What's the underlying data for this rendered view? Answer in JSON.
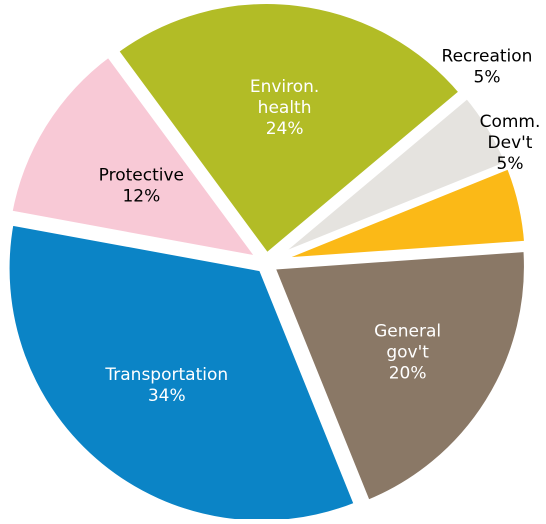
{
  "chart_data": {
    "type": "pie",
    "title": "",
    "start_angle": -40,
    "direction": "clockwise",
    "slices": [
      {
        "label_lines": [
          "Recreation",
          "5%"
        ],
        "value": 5,
        "color": "#e5e3df",
        "label_color": "#000000",
        "label_placement": "outside"
      },
      {
        "label_lines": [
          "Comm.",
          "Dev't",
          "5%"
        ],
        "value": 5,
        "color": "#fbb917",
        "label_color": "#000000",
        "label_placement": "outside"
      },
      {
        "label_lines": [
          "General",
          "gov't",
          "20%"
        ],
        "value": 20,
        "color": "#8a7866",
        "label_color": "#ffffff",
        "label_placement": "inside"
      },
      {
        "label_lines": [
          "Transportation",
          "34%"
        ],
        "value": 34,
        "color": "#0b84c6",
        "label_color": "#ffffff",
        "label_placement": "inside"
      },
      {
        "label_lines": [
          "Protective",
          "12%"
        ],
        "value": 12,
        "color": "#f8c9d6",
        "label_color": "#000000",
        "label_placement": "inside"
      },
      {
        "label_lines": [
          "Environ.",
          "health",
          "24%"
        ],
        "value": 24,
        "color": "#b2bc26",
        "label_color": "#ffffff",
        "label_placement": "inside"
      }
    ]
  }
}
